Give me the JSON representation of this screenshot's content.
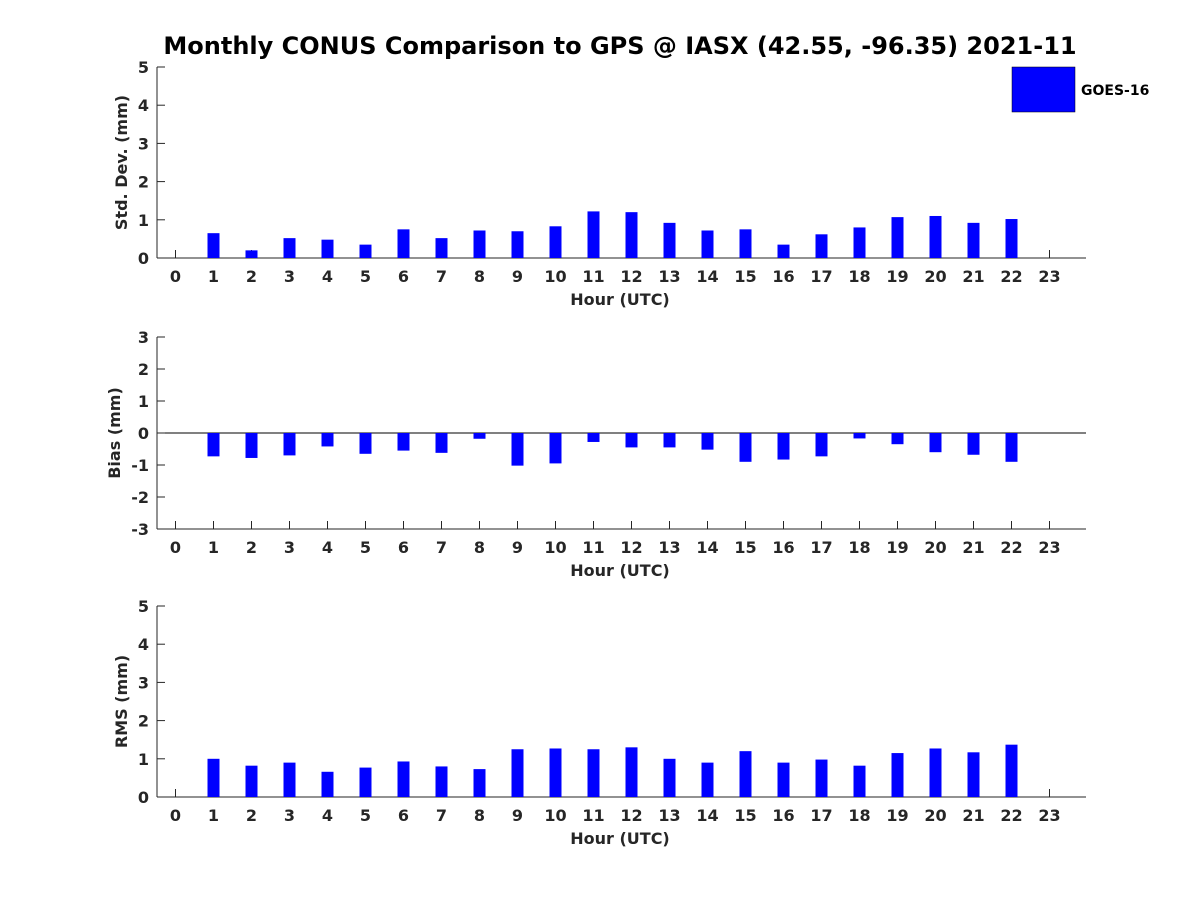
{
  "title": "Monthly CONUS Comparison to GPS @ IASX (42.55, -96.35) 2021-11",
  "legend": {
    "label": "GOES-16",
    "color": "#0000ff",
    "placement": "top-right"
  },
  "chart_data": [
    {
      "type": "bar",
      "name": "std",
      "xlabel": "Hour (UTC)",
      "ylabel": "Std. Dev. (mm)",
      "ylim": [
        0,
        5
      ],
      "yticks": [
        "0",
        "1",
        "2",
        "3",
        "4",
        "5"
      ],
      "categories": [
        "0",
        "1",
        "2",
        "3",
        "4",
        "5",
        "6",
        "7",
        "8",
        "9",
        "10",
        "11",
        "12",
        "13",
        "14",
        "15",
        "16",
        "17",
        "18",
        "19",
        "20",
        "21",
        "22",
        "23"
      ],
      "series": [
        {
          "name": "GOES-16",
          "color": "#0000ff",
          "values": [
            null,
            0.65,
            0.2,
            0.52,
            0.48,
            0.35,
            0.75,
            0.52,
            0.72,
            0.7,
            0.83,
            1.22,
            1.2,
            0.92,
            0.72,
            0.75,
            0.35,
            0.62,
            0.8,
            1.07,
            1.1,
            0.92,
            1.02,
            null
          ]
        }
      ]
    },
    {
      "type": "bar",
      "name": "bias",
      "xlabel": "Hour (UTC)",
      "ylabel": "Bias (mm)",
      "ylim": [
        -3,
        3
      ],
      "yticks": [
        "-3",
        "-2",
        "-1",
        "0",
        "1",
        "2",
        "3"
      ],
      "zero_line": true,
      "categories": [
        "0",
        "1",
        "2",
        "3",
        "4",
        "5",
        "6",
        "7",
        "8",
        "9",
        "10",
        "11",
        "12",
        "13",
        "14",
        "15",
        "16",
        "17",
        "18",
        "19",
        "20",
        "21",
        "22",
        "23"
      ],
      "series": [
        {
          "name": "GOES-16",
          "color": "#0000ff",
          "values": [
            null,
            -0.73,
            -0.78,
            -0.7,
            -0.42,
            -0.65,
            -0.55,
            -0.62,
            -0.18,
            -1.02,
            -0.95,
            -0.28,
            -0.45,
            -0.45,
            -0.52,
            -0.9,
            -0.83,
            -0.73,
            -0.17,
            -0.35,
            -0.6,
            -0.68,
            -0.9,
            null
          ]
        }
      ]
    },
    {
      "type": "bar",
      "name": "rms",
      "xlabel": "Hour (UTC)",
      "ylabel": "RMS (mm)",
      "ylim": [
        0,
        5
      ],
      "yticks": [
        "0",
        "1",
        "2",
        "3",
        "4",
        "5"
      ],
      "categories": [
        "0",
        "1",
        "2",
        "3",
        "4",
        "5",
        "6",
        "7",
        "8",
        "9",
        "10",
        "11",
        "12",
        "13",
        "14",
        "15",
        "16",
        "17",
        "18",
        "19",
        "20",
        "21",
        "22",
        "23"
      ],
      "series": [
        {
          "name": "GOES-16",
          "color": "#0000ff",
          "values": [
            null,
            1.0,
            0.82,
            0.9,
            0.66,
            0.77,
            0.93,
            0.8,
            0.73,
            1.25,
            1.27,
            1.25,
            1.3,
            1.0,
            0.9,
            1.2,
            0.9,
            0.98,
            0.82,
            1.15,
            1.27,
            1.17,
            1.37,
            null
          ]
        }
      ]
    }
  ]
}
